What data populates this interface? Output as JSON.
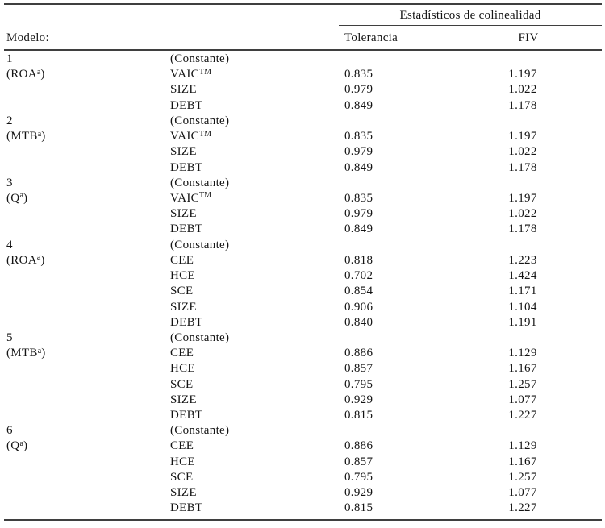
{
  "table": {
    "col_group_header": "Estadísticos de colinealidad",
    "model_header": "Modelo:",
    "col_headers": {
      "tolerancia": "Tolerancia",
      "fiv": "FIV"
    },
    "rows": [
      {
        "model": "1",
        "variable": "(Constante)",
        "tolerancia": "",
        "fiv": ""
      },
      {
        "model": "(ROA^{a})",
        "variable": "VAIC^{TM}",
        "tolerancia": "0.835",
        "fiv": "1.197"
      },
      {
        "model": "",
        "variable": "SIZE",
        "tolerancia": "0.979",
        "fiv": "1.022"
      },
      {
        "model": "",
        "variable": "DEBT",
        "tolerancia": "0.849",
        "fiv": "1.178"
      },
      {
        "model": "2",
        "variable": "(Constante)",
        "tolerancia": "",
        "fiv": ""
      },
      {
        "model": "(MTB^{a})",
        "variable": "VAIC^{TM}",
        "tolerancia": "0.835",
        "fiv": "1.197"
      },
      {
        "model": "",
        "variable": "SIZE",
        "tolerancia": "0.979",
        "fiv": "1.022"
      },
      {
        "model": "",
        "variable": "DEBT",
        "tolerancia": "0.849",
        "fiv": "1.178"
      },
      {
        "model": "3",
        "variable": "(Constante)",
        "tolerancia": "",
        "fiv": ""
      },
      {
        "model": "(Q^{a})",
        "variable": "VAIC^{TM}",
        "tolerancia": "0.835",
        "fiv": "1.197"
      },
      {
        "model": "",
        "variable": "SIZE",
        "tolerancia": "0.979",
        "fiv": "1.022"
      },
      {
        "model": "",
        "variable": "DEBT",
        "tolerancia": "0.849",
        "fiv": "1.178"
      },
      {
        "model": "4",
        "variable": "(Constante)",
        "tolerancia": "",
        "fiv": ""
      },
      {
        "model": "(ROA^{a})",
        "variable": "CEE",
        "tolerancia": "0.818",
        "fiv": "1.223"
      },
      {
        "model": "",
        "variable": "HCE",
        "tolerancia": "0.702",
        "fiv": "1.424"
      },
      {
        "model": "",
        "variable": "SCE",
        "tolerancia": "0.854",
        "fiv": "1.171"
      },
      {
        "model": "",
        "variable": "SIZE",
        "tolerancia": "0.906",
        "fiv": "1.104"
      },
      {
        "model": "",
        "variable": "DEBT",
        "tolerancia": "0.840",
        "fiv": "1.191"
      },
      {
        "model": "5",
        "variable": "(Constante)",
        "tolerancia": "",
        "fiv": ""
      },
      {
        "model": "(MTB^{a})",
        "variable": "CEE",
        "tolerancia": "0.886",
        "fiv": "1.129"
      },
      {
        "model": "",
        "variable": "HCE",
        "tolerancia": "0.857",
        "fiv": "1.167"
      },
      {
        "model": "",
        "variable": "SCE",
        "tolerancia": "0.795",
        "fiv": "1.257"
      },
      {
        "model": "",
        "variable": "SIZE",
        "tolerancia": "0.929",
        "fiv": "1.077"
      },
      {
        "model": "",
        "variable": "DEBT",
        "tolerancia": "0.815",
        "fiv": "1.227"
      },
      {
        "model": "6",
        "variable": "(Constante)",
        "tolerancia": "",
        "fiv": ""
      },
      {
        "model": "(Q^{a})",
        "variable": "CEE",
        "tolerancia": "0.886",
        "fiv": "1.129"
      },
      {
        "model": "",
        "variable": "HCE",
        "tolerancia": "0.857",
        "fiv": "1.167"
      },
      {
        "model": "",
        "variable": "SCE",
        "tolerancia": "0.795",
        "fiv": "1.257"
      },
      {
        "model": "",
        "variable": "SIZE",
        "tolerancia": "0.929",
        "fiv": "1.077"
      },
      {
        "model": "",
        "variable": "DEBT",
        "tolerancia": "0.815",
        "fiv": "1.227"
      }
    ]
  },
  "colors": {
    "text": "#141414",
    "rule": "#3f3f3f",
    "background": "#ffffff"
  }
}
